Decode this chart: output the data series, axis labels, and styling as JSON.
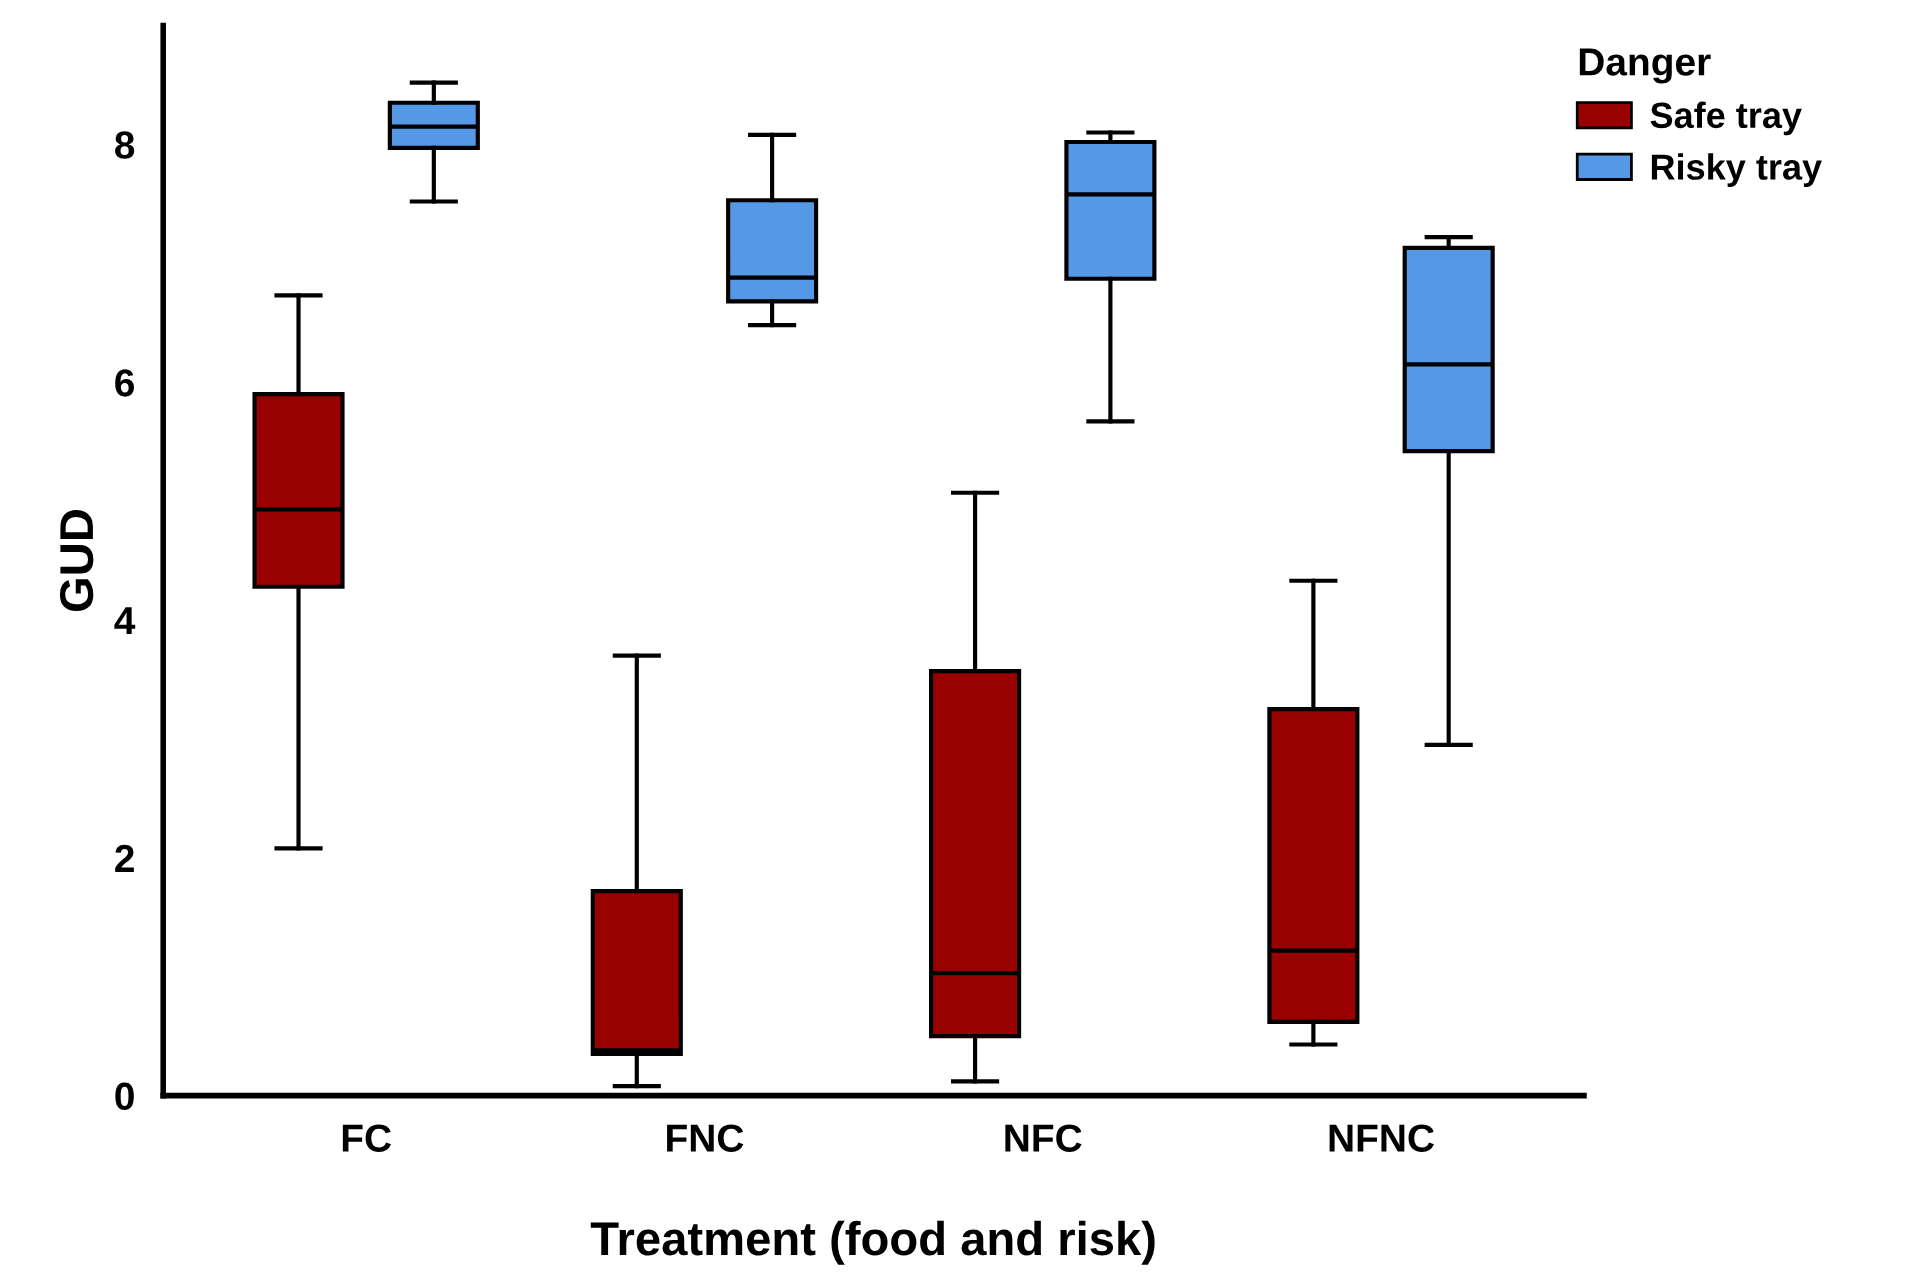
{
  "chart_data": {
    "type": "box",
    "xlabel": "Treatment (food and risk)",
    "ylabel": "GUD",
    "legend_title": "Danger",
    "legend": "top right",
    "categories": [
      "FC",
      "FNC",
      "NFC",
      "NFNC"
    ],
    "ylim": [
      0,
      9
    ],
    "yticks": [
      0,
      2,
      4,
      6,
      8
    ],
    "grid": false,
    "series": [
      {
        "name": "Safe tray",
        "color": "#990000",
        "boxes": [
          {
            "low": 2.08,
            "q1": 4.28,
            "median": 4.93,
            "q3": 5.9,
            "high": 6.73
          },
          {
            "low": 0.08,
            "q1": 0.35,
            "median": 0.38,
            "q3": 1.72,
            "high": 3.7
          },
          {
            "low": 0.12,
            "q1": 0.5,
            "median": 1.03,
            "q3": 3.57,
            "high": 5.07
          },
          {
            "low": 0.43,
            "q1": 0.62,
            "median": 1.22,
            "q3": 3.25,
            "high": 4.33
          }
        ]
      },
      {
        "name": "Risky tray",
        "color": "#5599e6",
        "boxes": [
          {
            "low": 7.52,
            "q1": 7.97,
            "median": 8.15,
            "q3": 8.35,
            "high": 8.52
          },
          {
            "low": 6.48,
            "q1": 6.68,
            "median": 6.88,
            "q3": 7.53,
            "high": 8.08
          },
          {
            "low": 5.67,
            "q1": 6.87,
            "median": 7.58,
            "q3": 8.02,
            "high": 8.1
          },
          {
            "low": 2.95,
            "q1": 5.42,
            "median": 6.15,
            "q3": 7.13,
            "high": 7.22
          }
        ]
      }
    ]
  }
}
